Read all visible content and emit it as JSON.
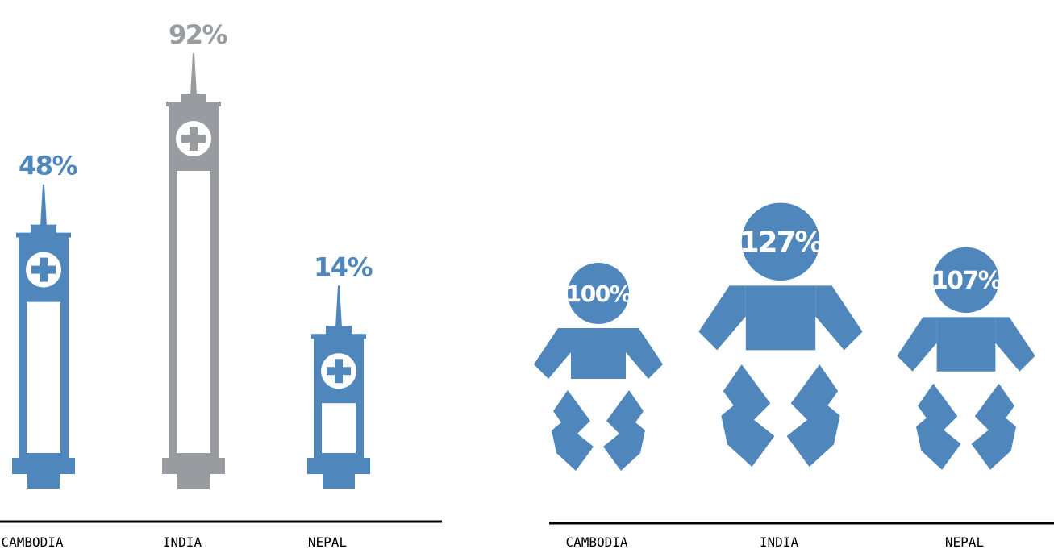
{
  "chart_data": [
    {
      "type": "bar",
      "categories": [
        "CAMBODIA",
        "INDIA",
        "NEPAL"
      ],
      "values": [
        48,
        92,
        14
      ],
      "value_labels": [
        "48%",
        "92%",
        "14%"
      ],
      "highlight_category": "INDIA",
      "colors": {
        "default": "#4f87bc",
        "highlight": "#989ca1"
      }
    },
    {
      "type": "bar",
      "categories": [
        "CAMBODIA",
        "INDIA",
        "NEPAL"
      ],
      "values": [
        100,
        127,
        107
      ],
      "value_labels": [
        "100%",
        "127%",
        "107%"
      ],
      "colors": {
        "default": "#4f87bc"
      }
    }
  ]
}
